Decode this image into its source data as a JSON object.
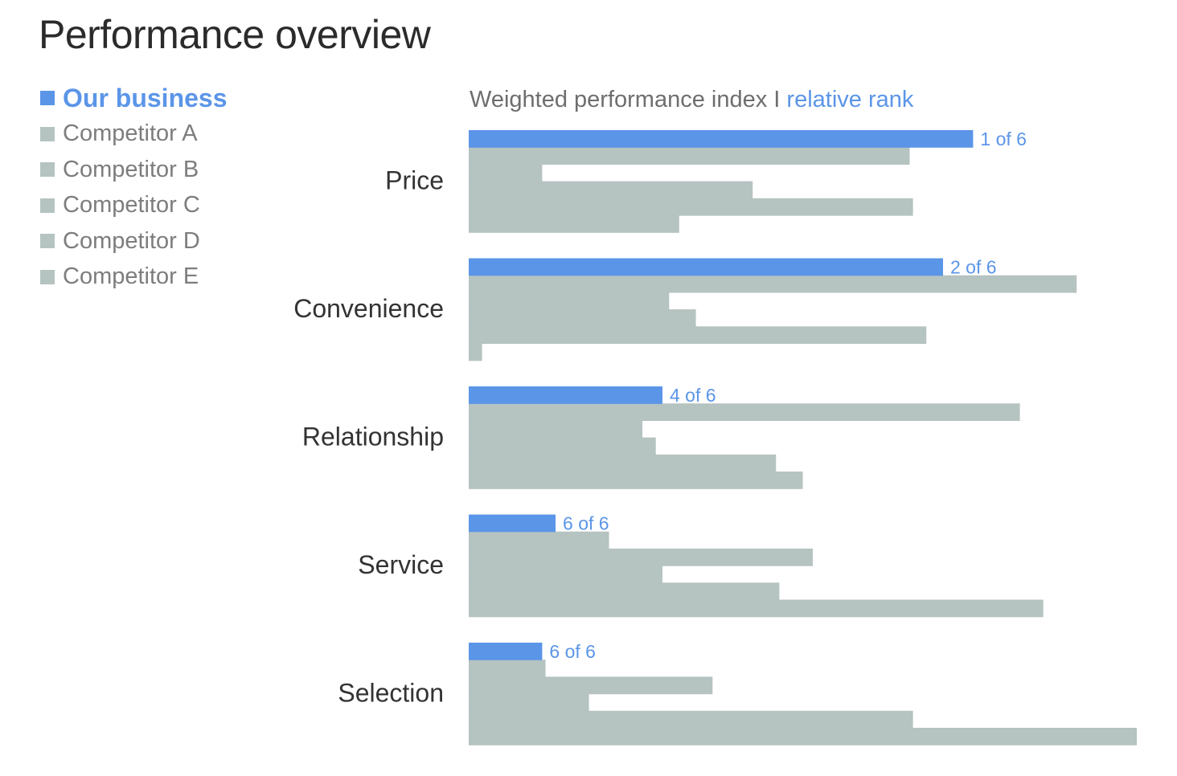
{
  "title": "Performance overview",
  "colors": {
    "primary": "#5b95e8",
    "competitor": "#b5c3c1",
    "label": "#333333",
    "legend_text": "#7d7d7d"
  },
  "chart_data": {
    "type": "bar",
    "orientation": "horizontal",
    "subtitle_main": "Weighted performance index I",
    "subtitle_accent": "relative rank",
    "categories": [
      "Price",
      "Convenience",
      "Relationship",
      "Service",
      "Selection"
    ],
    "series": [
      {
        "name": "Our business",
        "values": [
          75.5,
          71,
          29,
          13,
          11
        ]
      },
      {
        "name": "Competitor A",
        "values": [
          66,
          91,
          82.5,
          21,
          11.5
        ]
      },
      {
        "name": "Competitor B",
        "values": [
          11,
          30,
          26,
          51.5,
          36.5
        ]
      },
      {
        "name": "Competitor C",
        "values": [
          42.5,
          34,
          28,
          29,
          18
        ]
      },
      {
        "name": "Competitor D",
        "values": [
          66.5,
          68.5,
          46,
          46.5,
          66.5
        ]
      },
      {
        "name": "Competitor E",
        "values": [
          31.5,
          2,
          50,
          86,
          100
        ]
      }
    ],
    "rank_labels": [
      "1 of 6",
      "2 of 6",
      "4 of 6",
      "6 of 6",
      "6 of 6"
    ],
    "xlim": [
      0,
      100
    ],
    "grid": false,
    "legend_position": "top-left"
  }
}
